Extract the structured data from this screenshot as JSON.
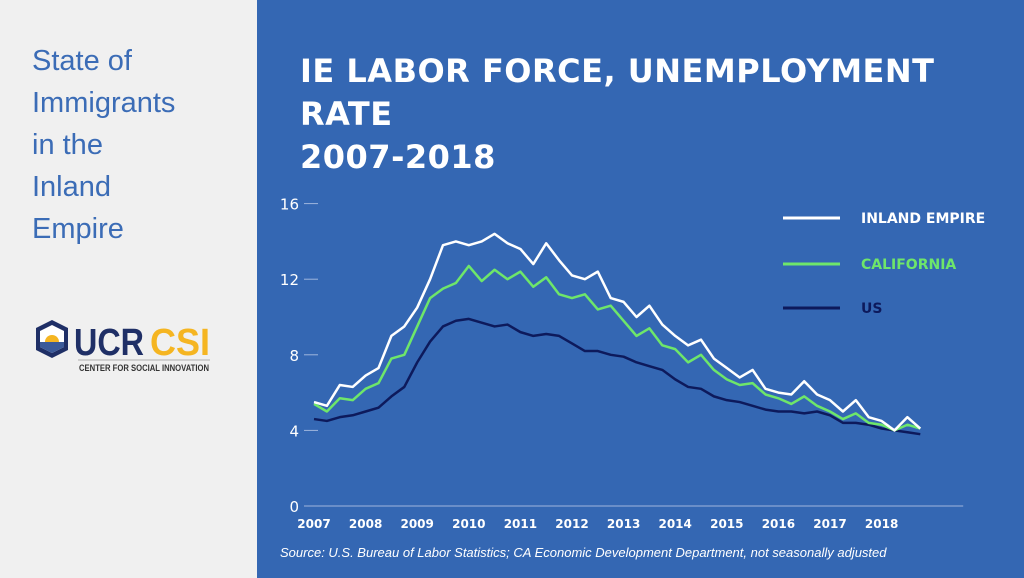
{
  "sidebar": {
    "title_lines": [
      "State of",
      "Immigrants",
      "in the",
      "Inland",
      "Empire"
    ],
    "logo": {
      "text1": "UCR",
      "text2": "CSI",
      "subtitle": "CENTER FOR SOCIAL INNOVATION"
    }
  },
  "source": "Source: U.S. Bureau of Labor Statistics;  CA Economic Development Department, not seasonally adjusted",
  "colors": {
    "bg": "#3467b3",
    "ie": "#ffffff",
    "ca": "#6ee66a",
    "us": "#0d1a5c"
  },
  "chart_data": {
    "type": "line",
    "title": "IE LABOR FORCE, UNEMPLOYMENT RATE",
    "subtitle": "2007-2018",
    "xlabel": "",
    "ylabel": "",
    "xlim": [
      2007,
      2019
    ],
    "ylim": [
      0,
      16
    ],
    "yticks": [
      "0",
      "4",
      "8",
      "12",
      "16"
    ],
    "xticks": [
      "2007",
      "2008",
      "2009",
      "2010",
      "2011",
      "2012",
      "2013",
      "2014",
      "2015",
      "2016",
      "2017",
      "2018"
    ],
    "legend_position": "top-right",
    "x_start": 2007,
    "x_step": 0.25,
    "series": [
      {
        "name": "INLAND EMPIRE",
        "key": "ie",
        "values": [
          5.5,
          5.3,
          6.4,
          6.3,
          6.9,
          7.3,
          9.0,
          9.5,
          10.5,
          12.0,
          13.8,
          14.0,
          13.8,
          14.0,
          14.4,
          13.9,
          13.6,
          12.8,
          13.9,
          13.0,
          12.2,
          12.0,
          12.4,
          11.0,
          10.8,
          10.0,
          10.6,
          9.6,
          9.0,
          8.5,
          8.8,
          7.8,
          7.3,
          6.8,
          7.2,
          6.2,
          6.0,
          5.9,
          6.6,
          5.9,
          5.6,
          5.0,
          5.6,
          4.7,
          4.5,
          4.0,
          4.7,
          4.1
        ]
      },
      {
        "name": "CALIFORNIA",
        "key": "ca",
        "values": [
          5.4,
          5.0,
          5.7,
          5.6,
          6.2,
          6.5,
          7.8,
          8.0,
          9.5,
          11.0,
          11.5,
          11.8,
          12.7,
          11.9,
          12.5,
          12.0,
          12.4,
          11.6,
          12.1,
          11.2,
          11.0,
          11.2,
          10.4,
          10.6,
          9.8,
          9.0,
          9.4,
          8.5,
          8.3,
          7.6,
          8.0,
          7.2,
          6.7,
          6.4,
          6.5,
          5.9,
          5.7,
          5.4,
          5.8,
          5.3,
          5.0,
          4.6,
          4.9,
          4.4,
          4.3,
          4.0,
          4.3,
          4.1
        ]
      },
      {
        "name": "US",
        "key": "us",
        "values": [
          4.6,
          4.5,
          4.7,
          4.8,
          5.0,
          5.2,
          5.8,
          6.3,
          7.6,
          8.7,
          9.5,
          9.8,
          9.9,
          9.7,
          9.5,
          9.6,
          9.2,
          9.0,
          9.1,
          9.0,
          8.6,
          8.2,
          8.2,
          8.0,
          7.9,
          7.6,
          7.4,
          7.2,
          6.7,
          6.3,
          6.2,
          5.8,
          5.6,
          5.5,
          5.3,
          5.1,
          5.0,
          5.0,
          4.9,
          5.0,
          4.8,
          4.4,
          4.4,
          4.3,
          4.1,
          4.0,
          3.9,
          3.8
        ]
      }
    ]
  }
}
